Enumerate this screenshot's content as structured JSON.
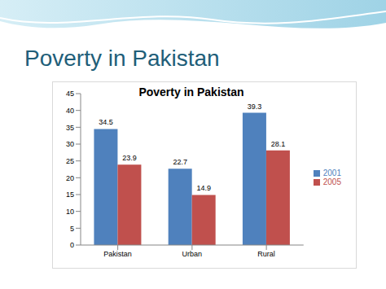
{
  "slide": {
    "title": "Poverty in Pakistan"
  },
  "chart_data": {
    "type": "bar",
    "title": "Poverty in Pakistan",
    "categories": [
      "Pakistan",
      "Urban",
      "Rural"
    ],
    "series": [
      {
        "name": "2001",
        "color": "#4f81bd",
        "values": [
          34.5,
          22.7,
          39.3
        ]
      },
      {
        "name": "2005",
        "color": "#c0504d",
        "values": [
          23.9,
          14.9,
          28.1
        ]
      }
    ],
    "ylim": [
      0,
      45
    ],
    "yticks": [
      0,
      5,
      10,
      15,
      20,
      25,
      30,
      35,
      40,
      45
    ],
    "grid": false,
    "legend": "right",
    "data_labels": true
  }
}
